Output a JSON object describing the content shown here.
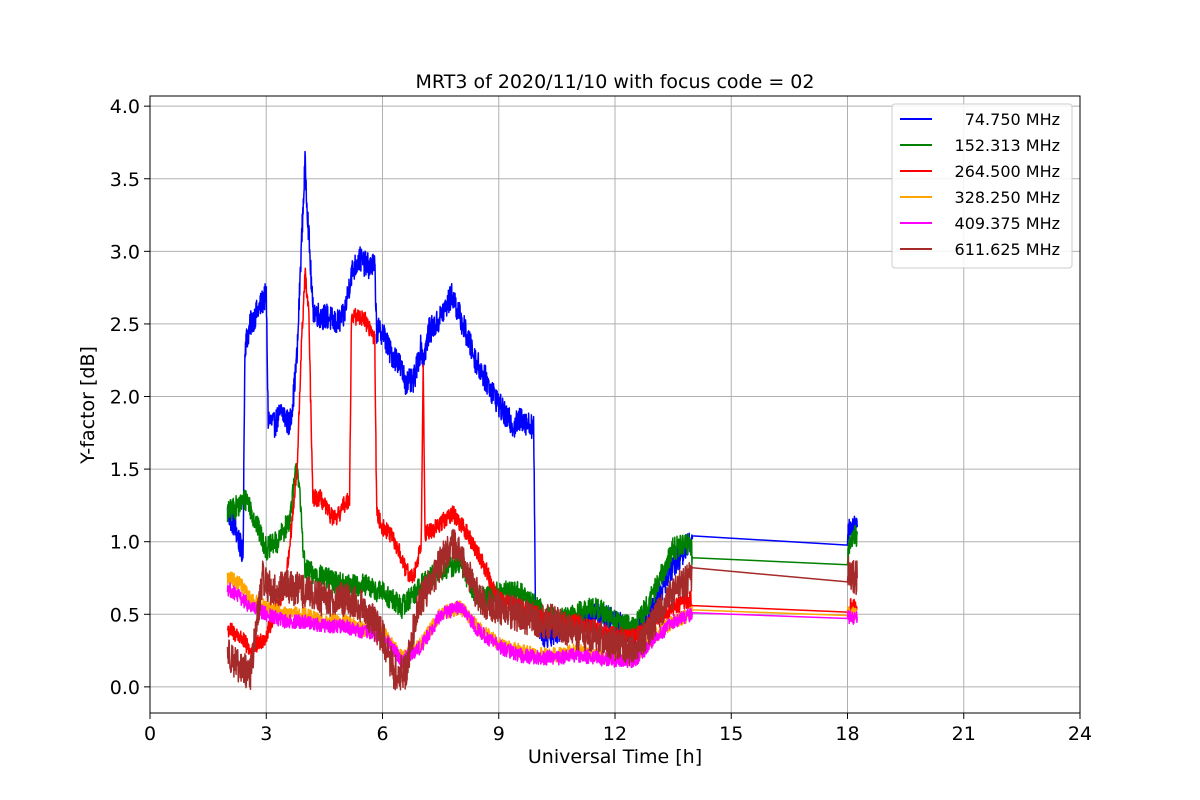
{
  "chart_data": {
    "type": "line",
    "title": "MRT3 of 2020/11/10 with focus code = 02",
    "xlabel": "Universal Time [h]",
    "ylabel": "Y-factor [dB]",
    "xlim": [
      0,
      24
    ],
    "ylim": [
      -0.18,
      4.07
    ],
    "xticks": [
      0,
      3,
      6,
      9,
      12,
      15,
      18,
      21,
      24
    ],
    "yticks": [
      0.0,
      0.5,
      1.0,
      1.5,
      2.0,
      2.5,
      3.0,
      3.5,
      4.0
    ],
    "xtick_labels": [
      "0",
      "3",
      "6",
      "9",
      "12",
      "15",
      "18",
      "21",
      "24"
    ],
    "ytick_labels": [
      "0.0",
      "0.5",
      "1.0",
      "1.5",
      "2.0",
      "2.5",
      "3.0",
      "3.5",
      "4.0"
    ],
    "grid": true,
    "legend_position": "top-right",
    "series": [
      {
        "name": "74.750 MHz",
        "color": "#0000ff",
        "noise": 0.09,
        "x": [
          2.0,
          2.2,
          2.4,
          2.45,
          2.6,
          2.8,
          3.0,
          3.05,
          3.2,
          3.4,
          3.6,
          3.7,
          3.8,
          3.9,
          4.0,
          4.1,
          4.2,
          4.4,
          4.6,
          4.8,
          5.0,
          5.2,
          5.4,
          5.6,
          5.8,
          5.85,
          6.0,
          6.2,
          6.4,
          6.6,
          6.8,
          7.0,
          7.05,
          7.2,
          7.4,
          7.6,
          7.8,
          8.0,
          8.2,
          8.4,
          8.6,
          8.8,
          9.0,
          9.2,
          9.4,
          9.6,
          9.8,
          9.9,
          9.95,
          10.2,
          10.6,
          11.0,
          11.5,
          12.0,
          12.5,
          13.0,
          13.4,
          13.8,
          13.95,
          14.0,
          18.0,
          18.05,
          18.25
        ],
        "y": [
          1.2,
          1.1,
          0.9,
          2.35,
          2.5,
          2.6,
          2.7,
          1.85,
          1.8,
          1.9,
          1.8,
          2.0,
          2.3,
          3.0,
          3.6,
          3.1,
          2.6,
          2.55,
          2.55,
          2.5,
          2.55,
          2.85,
          2.95,
          2.9,
          2.9,
          2.45,
          2.45,
          2.3,
          2.25,
          2.1,
          2.1,
          2.35,
          2.25,
          2.45,
          2.5,
          2.6,
          2.7,
          2.55,
          2.4,
          2.25,
          2.15,
          2.05,
          1.95,
          1.85,
          1.8,
          1.85,
          1.8,
          1.8,
          0.45,
          0.35,
          0.4,
          0.45,
          0.5,
          0.45,
          0.35,
          0.55,
          0.8,
          0.95,
          1.0,
          1.04,
          1.04,
          1.1,
          1.1
        ]
      },
      {
        "name": "152.313 MHz",
        "color": "#008000",
        "noise": 0.08,
        "x": [
          2.0,
          2.3,
          2.5,
          2.7,
          3.0,
          3.3,
          3.6,
          3.8,
          4.0,
          4.5,
          5.0,
          5.5,
          6.0,
          6.5,
          7.0,
          7.5,
          8.0,
          8.5,
          9.0,
          9.5,
          10.0,
          10.5,
          11.0,
          11.5,
          12.0,
          12.5,
          13.0,
          13.5,
          13.95,
          14.0,
          18.0,
          18.05,
          18.25
        ],
        "y": [
          1.2,
          1.25,
          1.3,
          1.15,
          0.95,
          1.0,
          1.15,
          1.55,
          0.8,
          0.75,
          0.7,
          0.7,
          0.65,
          0.55,
          0.7,
          0.8,
          0.85,
          0.6,
          0.65,
          0.65,
          0.55,
          0.45,
          0.5,
          0.55,
          0.45,
          0.4,
          0.65,
          0.95,
          1.0,
          0.89,
          0.9,
          1.0,
          1.05
        ]
      },
      {
        "name": "264.500 MHz",
        "color": "#ff0000",
        "noise": 0.06,
        "x": [
          2.0,
          2.3,
          2.6,
          2.8,
          3.0,
          3.2,
          3.5,
          3.8,
          3.9,
          4.0,
          4.1,
          4.2,
          4.4,
          4.6,
          4.8,
          5.0,
          5.15,
          5.2,
          5.5,
          5.8,
          5.85,
          6.0,
          6.2,
          6.4,
          6.6,
          6.8,
          7.0,
          7.05,
          7.1,
          7.4,
          7.8,
          8.2,
          8.6,
          9.0,
          9.5,
          10.0,
          10.5,
          11.0,
          11.5,
          12.0,
          12.5,
          13.0,
          13.5,
          13.95,
          14.0,
          18.0,
          18.05,
          18.25
        ],
        "y": [
          0.4,
          0.35,
          0.25,
          0.3,
          0.35,
          0.5,
          0.7,
          1.5,
          2.3,
          2.85,
          2.55,
          1.3,
          1.3,
          1.2,
          1.15,
          1.25,
          1.3,
          2.55,
          2.55,
          2.4,
          1.2,
          1.1,
          1.05,
          0.95,
          0.8,
          0.75,
          1.0,
          2.25,
          1.05,
          1.1,
          1.2,
          1.05,
          0.85,
          0.6,
          0.55,
          0.5,
          0.45,
          0.45,
          0.4,
          0.35,
          0.35,
          0.45,
          0.55,
          0.6,
          0.56,
          0.56,
          0.55,
          0.55
        ]
      },
      {
        "name": "328.250 MHz",
        "color": "#ffa500",
        "noise": 0.05,
        "x": [
          2.0,
          2.3,
          2.6,
          3.0,
          3.5,
          4.0,
          4.5,
          5.0,
          5.5,
          6.0,
          6.5,
          7.0,
          7.5,
          8.0,
          8.5,
          9.0,
          9.5,
          10.0,
          10.5,
          11.0,
          11.5,
          12.0,
          12.5,
          13.0,
          13.5,
          13.95,
          14.0,
          18.0,
          18.05,
          18.25
        ],
        "y": [
          0.75,
          0.72,
          0.6,
          0.55,
          0.5,
          0.5,
          0.45,
          0.45,
          0.4,
          0.38,
          0.2,
          0.3,
          0.5,
          0.55,
          0.4,
          0.3,
          0.25,
          0.22,
          0.22,
          0.25,
          0.22,
          0.2,
          0.2,
          0.35,
          0.45,
          0.5,
          0.53,
          0.53,
          0.5,
          0.5
        ]
      },
      {
        "name": "409.375 MHz",
        "color": "#ff00ff",
        "noise": 0.05,
        "x": [
          2.0,
          2.3,
          2.6,
          3.0,
          3.5,
          4.0,
          4.5,
          5.0,
          5.5,
          6.0,
          6.5,
          7.0,
          7.5,
          8.0,
          8.5,
          9.0,
          9.5,
          10.0,
          10.5,
          11.0,
          11.5,
          12.0,
          12.5,
          13.0,
          13.5,
          13.95,
          14.0,
          18.0,
          18.05,
          18.25
        ],
        "y": [
          0.68,
          0.62,
          0.55,
          0.5,
          0.45,
          0.45,
          0.42,
          0.42,
          0.38,
          0.35,
          0.18,
          0.28,
          0.5,
          0.55,
          0.38,
          0.28,
          0.22,
          0.2,
          0.2,
          0.22,
          0.2,
          0.18,
          0.18,
          0.32,
          0.45,
          0.5,
          0.51,
          0.51,
          0.48,
          0.48
        ]
      },
      {
        "name": "611.625 MHz",
        "color": "#a52a2a",
        "noise": 0.12,
        "x": [
          2.0,
          2.3,
          2.6,
          2.9,
          3.2,
          3.5,
          4.0,
          4.5,
          5.0,
          5.5,
          6.0,
          6.3,
          6.6,
          6.9,
          7.2,
          7.5,
          7.8,
          8.1,
          8.4,
          8.7,
          9.0,
          9.5,
          10.0,
          10.5,
          11.0,
          11.5,
          12.0,
          12.5,
          13.0,
          13.5,
          13.95,
          14.0,
          18.0,
          18.05,
          18.25
        ],
        "y": [
          0.25,
          0.12,
          0.1,
          0.75,
          0.65,
          0.7,
          0.65,
          0.6,
          0.6,
          0.55,
          0.35,
          0.1,
          0.1,
          0.55,
          0.7,
          0.85,
          1.0,
          0.85,
          0.65,
          0.55,
          0.55,
          0.5,
          0.45,
          0.45,
          0.35,
          0.35,
          0.3,
          0.25,
          0.45,
          0.65,
          0.75,
          0.82,
          0.82,
          0.75,
          0.75
        ]
      }
    ]
  }
}
